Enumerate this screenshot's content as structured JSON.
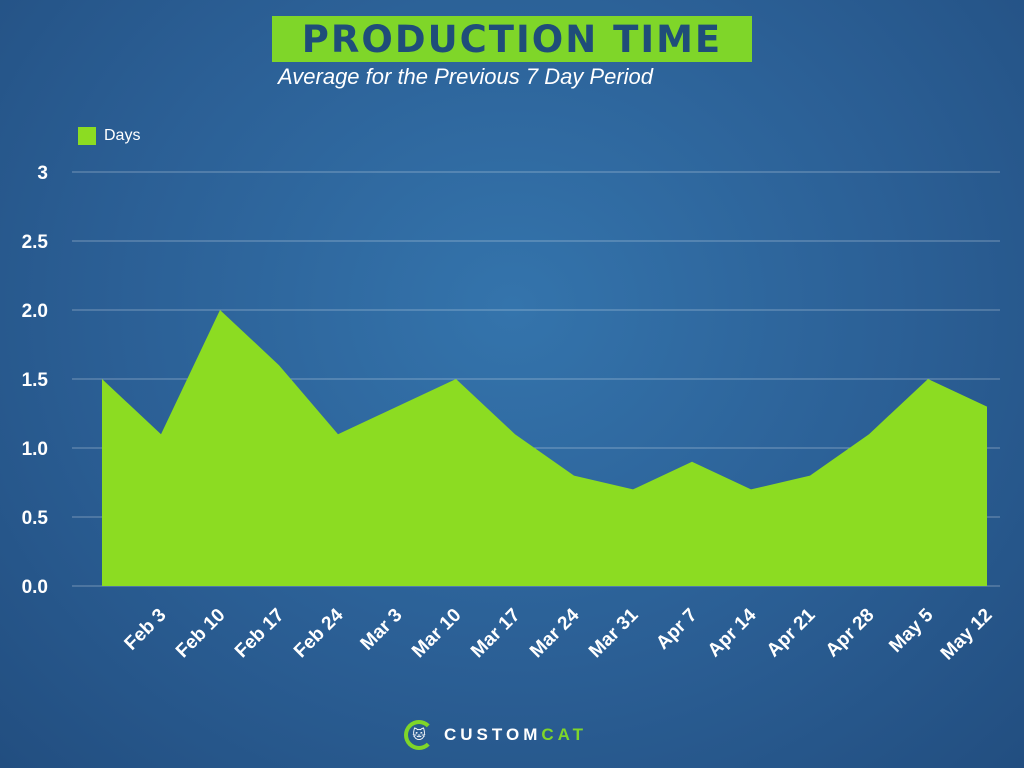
{
  "header": {
    "title": "PRODUCTION TIME",
    "subtitle": "Average for the Previous 7 Day Period"
  },
  "logo": {
    "part1": "CUSTOM",
    "part2": "CAT",
    "icon": "cat-icon"
  },
  "colors": {
    "background": "#2b5f95",
    "area": "#8cdc22",
    "title_box": "#7fd629",
    "title_text": "#1f4d79"
  },
  "chart_data": {
    "type": "area",
    "series": [
      {
        "name": "Days",
        "x": [
          "",
          "Feb 3",
          "Feb 10",
          "Feb 17",
          "Feb 24",
          "Mar 3",
          "Mar 10",
          "Mar 17",
          "Mar 24",
          "Mar 31",
          "Apr 7",
          "Apr 14",
          "Apr 21",
          "Apr 28",
          "May 5",
          "May 12"
        ],
        "values": [
          1.5,
          1.1,
          2.0,
          1.6,
          1.1,
          1.3,
          1.5,
          1.1,
          0.8,
          0.7,
          0.9,
          0.7,
          0.8,
          1.1,
          1.5,
          1.3
        ]
      }
    ],
    "x_tick_labels": [
      "Feb 3",
      "Feb 10",
      "Feb 17",
      "Feb 24",
      "Mar 3",
      "Mar 10",
      "Mar 17",
      "Mar 24",
      "Mar 31",
      "Apr 7",
      "Apr 14",
      "Apr 21",
      "Apr 28",
      "May 5",
      "May 12"
    ],
    "y_ticks": [
      0,
      0.5,
      1.0,
      1.5,
      2.0,
      2.5,
      3
    ],
    "y_tick_labels": [
      "0.0",
      "0.5",
      "1.0",
      "1.5",
      "2.0",
      "2.5",
      "3"
    ],
    "ylim": [
      0,
      3
    ],
    "grid": true,
    "legend": "top-left"
  }
}
